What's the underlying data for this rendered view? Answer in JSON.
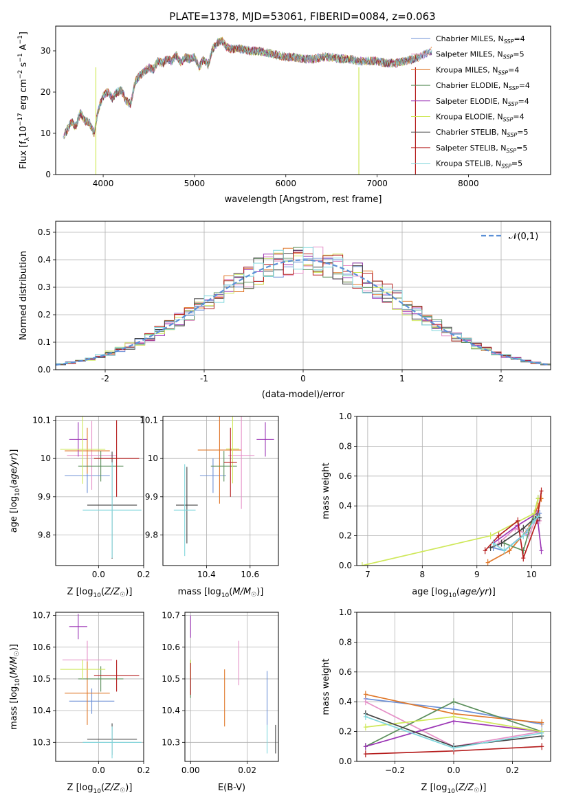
{
  "figure_title": "PLATE=1378, MJD=53061, FIBERID=0084, z=0.063",
  "models": [
    {
      "label": "Chabrier MILES",
      "nssp": "4",
      "color": "#6b8fd6"
    },
    {
      "label": "Salpeter MILES",
      "nssp": "5",
      "color": "#e58fc7"
    },
    {
      "label": "Kroupa MILES",
      "nssp": "4",
      "color": "#e0782a"
    },
    {
      "label": "Chabrier ELODIE",
      "nssp": "4",
      "color": "#5b8f5b"
    },
    {
      "label": "Salpeter ELODIE",
      "nssp": "4",
      "color": "#9b35b5"
    },
    {
      "label": "Kroupa ELODIE",
      "nssp": "4",
      "color": "#cfe85a"
    },
    {
      "label": "Chabrier STELIB",
      "nssp": "5",
      "color": "#444444"
    },
    {
      "label": "Salpeter STELIB",
      "nssp": "5",
      "color": "#b51c1c"
    },
    {
      "label": "Kroupa STELIB",
      "nssp": "5",
      "color": "#7fd6dc"
    }
  ],
  "chart_data": [
    {
      "id": "spectrum",
      "type": "line",
      "xlabel": "wavelength [Angstrom, rest frame]",
      "ylabel": "Flux [f_λ 10^-17 erg cm^-2 s^-1 A^-1]",
      "xlim": [
        3480,
        8900
      ],
      "ylim": [
        0,
        36
      ],
      "xticks": [
        4000,
        5000,
        6000,
        7000,
        8000
      ],
      "yticks": [
        0,
        10,
        20,
        30
      ],
      "series": [
        {
          "name": "spectrum",
          "x": [
            3560,
            3600,
            3650,
            3700,
            3750,
            3800,
            3850,
            3900,
            3950,
            4000,
            4050,
            4100,
            4150,
            4200,
            4250,
            4300,
            4350,
            4400,
            4450,
            4500,
            4550,
            4600,
            4650,
            4700,
            4750,
            4800,
            4850,
            4900,
            4950,
            5000,
            5050,
            5100,
            5150,
            5200,
            5250,
            5300,
            5350,
            5400,
            5500,
            5600,
            5700,
            5800,
            5900,
            6000,
            6100,
            6200,
            6300,
            6400,
            6500,
            6600,
            6700,
            6800,
            6900,
            7000,
            7100,
            7200,
            7300,
            7400,
            7500,
            7600
          ],
          "y": [
            9,
            10.5,
            13,
            11.5,
            15,
            13,
            12.5,
            10,
            16,
            19,
            20,
            18.5,
            20,
            20.5,
            18,
            17,
            22.5,
            24,
            25,
            26,
            25.5,
            27.5,
            27,
            28,
            27.5,
            29,
            27,
            28.5,
            28,
            28.5,
            26,
            28,
            26.5,
            30.5,
            32,
            32.5,
            31,
            30.5,
            30.5,
            30,
            30,
            29.5,
            29,
            28.5,
            28.5,
            28,
            28,
            28.5,
            28.5,
            28,
            28,
            27.5,
            27.5,
            27.5,
            27,
            27,
            27.5,
            28,
            29,
            30
          ]
        }
      ]
    },
    {
      "id": "residuals",
      "type": "histogram",
      "xlabel": "(data-model)/error",
      "ylabel": "Normed distribution",
      "xlim": [
        -2.5,
        2.5
      ],
      "ylim": [
        0,
        0.54
      ],
      "xticks": [
        -2,
        -1,
        0,
        1,
        2
      ],
      "yticks": [
        0.0,
        0.1,
        0.2,
        0.3,
        0.4,
        0.5
      ],
      "grid": true,
      "reference_curve": {
        "name": "𝒩(0,1)",
        "type": "normal",
        "mean": 0,
        "sigma": 1
      },
      "legend_loc": "top-right",
      "bin_edges_start": -2.5,
      "bin_width": 0.1
    },
    {
      "id": "age_vs_Z",
      "type": "errorbar",
      "xlabel": "Z [log10(Z/Z☉)]",
      "ylabel": "age [log10(age/yr)]",
      "xlim": [
        -0.19,
        0.2
      ],
      "ylim": [
        9.72,
        10.11
      ],
      "xticks": [
        0.0,
        0.2
      ],
      "xticklabels": [
        "0.0",
        "0.2"
      ],
      "yticks": [
        9.8,
        9.9,
        10.0,
        10.1
      ],
      "grid": true,
      "points": [
        {
          "model": 0,
          "x": -0.05,
          "xerr": 0.1,
          "y": 9.955,
          "yerr": 0.045
        },
        {
          "model": 1,
          "x": -0.03,
          "xerr": 0.11,
          "y": 10.008,
          "yerr": 0.09
        },
        {
          "model": 2,
          "x": -0.05,
          "xerr": 0.1,
          "y": 10.02,
          "yerr": 0.06
        },
        {
          "model": 3,
          "x": 0.01,
          "xerr": 0.1,
          "y": 9.98,
          "yerr": 0.04
        },
        {
          "model": 4,
          "x": -0.09,
          "xerr": 0.04,
          "y": 10.05,
          "yerr": 0.045
        },
        {
          "model": 5,
          "x": -0.07,
          "xerr": 0.1,
          "y": 10.024,
          "yerr": 0.09
        },
        {
          "model": 6,
          "x": 0.06,
          "xerr": 0.11,
          "y": 9.878,
          "yerr": 0.14
        },
        {
          "model": 7,
          "x": 0.08,
          "xerr": 0.1,
          "y": 10.0,
          "yerr": 0.1
        },
        {
          "model": 8,
          "x": 0.06,
          "xerr": 0.13,
          "y": 9.865,
          "yerr": 0.125
        }
      ]
    },
    {
      "id": "age_vs_mass",
      "type": "errorbar",
      "xlabel": "mass [log10(M/M☉)]",
      "ylabel": "",
      "xlim": [
        10.2,
        10.73
      ],
      "ylim": [
        9.72,
        10.11
      ],
      "xticks": [
        10.4,
        10.6
      ],
      "yticks": [
        9.8,
        9.9,
        10.0,
        10.1
      ],
      "grid": true,
      "points": [
        {
          "model": 0,
          "x": 10.43,
          "xerr": 0.06,
          "y": 9.955,
          "yerr": 0.045
        },
        {
          "model": 1,
          "x": 10.56,
          "xerr": 0.06,
          "y": 10.008,
          "yerr": 0.14
        },
        {
          "model": 2,
          "x": 10.46,
          "xerr": 0.1,
          "y": 10.022,
          "yerr": 0.14
        },
        {
          "model": 3,
          "x": 10.48,
          "xerr": 0.06,
          "y": 9.98,
          "yerr": 0.04
        },
        {
          "model": 4,
          "x": 10.67,
          "xerr": 0.04,
          "y": 10.05,
          "yerr": 0.045
        },
        {
          "model": 5,
          "x": 10.52,
          "xerr": 0.03,
          "y": 10.025,
          "yerr": 0.09
        },
        {
          "model": 6,
          "x": 10.31,
          "xerr": 0.05,
          "y": 9.878,
          "yerr": 0.1
        },
        {
          "model": 7,
          "x": 10.51,
          "xerr": 0.03,
          "y": 9.99,
          "yerr": 0.09
        },
        {
          "model": 8,
          "x": 10.3,
          "xerr": 0.05,
          "y": 9.865,
          "yerr": 0.12
        }
      ]
    },
    {
      "id": "weight_vs_age",
      "type": "line",
      "xlabel": "age [log10(age/yr)]",
      "ylabel": "mass weight",
      "xlim": [
        6.8,
        10.35
      ],
      "ylim": [
        0,
        1.0
      ],
      "xticks": [
        7,
        8,
        9,
        10
      ],
      "yticks": [
        0.0,
        0.2,
        0.4,
        0.6,
        0.8,
        1.0
      ],
      "grid": true,
      "series": [
        {
          "model": 0,
          "x": [
            9.3,
            9.5,
            9.9,
            10.1,
            10.15
          ],
          "y": [
            0.12,
            0.1,
            0.22,
            0.33,
            0.35
          ]
        },
        {
          "model": 1,
          "x": [
            9.4,
            9.7,
            9.95,
            10.1,
            10.15
          ],
          "y": [
            0.15,
            0.25,
            0.2,
            0.33,
            0.3
          ]
        },
        {
          "model": 2,
          "x": [
            9.2,
            9.6,
            9.95,
            10.12,
            10.18
          ],
          "y": [
            0.02,
            0.1,
            0.25,
            0.4,
            0.45
          ]
        },
        {
          "model": 3,
          "x": [
            9.5,
            9.85,
            10.05,
            10.12
          ],
          "y": [
            0.15,
            0.1,
            0.35,
            0.45
          ]
        },
        {
          "model": 4,
          "x": [
            9.3,
            9.75,
            10.1,
            10.18
          ],
          "y": [
            0.15,
            0.27,
            0.35,
            0.1
          ]
        },
        {
          "model": 5,
          "x": [
            6.9,
            9.25,
            10.05,
            10.12
          ],
          "y": [
            0.0,
            0.2,
            0.35,
            0.45
          ]
        },
        {
          "model": 6,
          "x": [
            9.25,
            9.45,
            9.85,
            10.1,
            10.15
          ],
          "y": [
            0.12,
            0.15,
            0.25,
            0.33,
            0.32
          ]
        },
        {
          "model": 7,
          "x": [
            9.15,
            9.4,
            9.75,
            9.85,
            10.1,
            10.18
          ],
          "y": [
            0.1,
            0.2,
            0.3,
            0.05,
            0.3,
            0.5
          ]
        },
        {
          "model": 8,
          "x": [
            9.3,
            9.5,
            9.85,
            10.05,
            10.12
          ],
          "y": [
            0.15,
            0.1,
            0.2,
            0.3,
            0.33
          ]
        }
      ]
    },
    {
      "id": "mass_vs_Z",
      "type": "errorbar",
      "xlabel": "Z [log10(Z/Z☉)]",
      "ylabel": "mass [log10(M/M☉)]",
      "xlim": [
        -0.19,
        0.2
      ],
      "ylim": [
        10.24,
        10.71
      ],
      "xticks": [
        0.0,
        0.2
      ],
      "xticklabels": [
        "0.0",
        "0.2"
      ],
      "yticks": [
        10.3,
        10.4,
        10.5,
        10.6,
        10.7
      ],
      "grid": true,
      "points": [
        {
          "model": 0,
          "x": -0.03,
          "xerr": 0.1,
          "y": 10.43,
          "yerr": 0.04
        },
        {
          "model": 1,
          "x": -0.05,
          "xerr": 0.11,
          "y": 10.56,
          "yerr": 0.06
        },
        {
          "model": 2,
          "x": -0.05,
          "xerr": 0.1,
          "y": 10.455,
          "yerr": 0.1
        },
        {
          "model": 3,
          "x": 0.01,
          "xerr": 0.1,
          "y": 10.5,
          "yerr": 0.04
        },
        {
          "model": 4,
          "x": -0.09,
          "xerr": 0.04,
          "y": 10.665,
          "yerr": 0.04
        },
        {
          "model": 5,
          "x": -0.07,
          "xerr": 0.1,
          "y": 10.53,
          "yerr": 0.03
        },
        {
          "model": 6,
          "x": 0.06,
          "xerr": 0.11,
          "y": 10.31,
          "yerr": 0.05
        },
        {
          "model": 7,
          "x": 0.08,
          "xerr": 0.1,
          "y": 10.51,
          "yerr": 0.05
        },
        {
          "model": 8,
          "x": 0.06,
          "xerr": 0.13,
          "y": 10.3,
          "yerr": 0.05
        }
      ]
    },
    {
      "id": "mass_vs_ebv",
      "type": "errorbar",
      "xlabel": "E(B-V)",
      "ylabel": "",
      "xlim": [
        -0.002,
        0.031
      ],
      "ylim": [
        10.24,
        10.71
      ],
      "xticks": [
        0.0,
        0.02
      ],
      "xticklabels": [
        "0.00",
        "0.02"
      ],
      "yticks": [
        10.3,
        10.4,
        10.5,
        10.6,
        10.7
      ],
      "grid": true,
      "points": [
        {
          "model": 0,
          "x": 0.027,
          "xerr": 0.0,
          "y": 10.44,
          "yerr": 0.085
        },
        {
          "model": 1,
          "x": 0.017,
          "xerr": 0.0,
          "y": 10.55,
          "yerr": 0.07
        },
        {
          "model": 2,
          "x": 0.012,
          "xerr": 0.0,
          "y": 10.44,
          "yerr": 0.09
        },
        {
          "model": 3,
          "x": 0.0,
          "xerr": 0.0,
          "y": 10.5,
          "yerr": 0.06
        },
        {
          "model": 4,
          "x": 0.0,
          "xerr": 0.0,
          "y": 10.665,
          "yerr": 0.035
        },
        {
          "model": 5,
          "x": 0.0,
          "xerr": 0.0,
          "y": 10.53,
          "yerr": 0.03
        },
        {
          "model": 6,
          "x": 0.03,
          "xerr": 0.0,
          "y": 10.31,
          "yerr": 0.045
        },
        {
          "model": 7,
          "x": 0.0,
          "xerr": 0.0,
          "y": 10.5,
          "yerr": 0.05
        },
        {
          "model": 8,
          "x": 0.027,
          "xerr": 0.0,
          "y": 10.31,
          "yerr": 0.045
        }
      ]
    },
    {
      "id": "weight_vs_Z",
      "type": "line",
      "xlabel": "Z [log10(Z/Z☉)]",
      "ylabel": "mass weight",
      "xlim": [
        -0.33,
        0.33
      ],
      "ylim": [
        0,
        1.0
      ],
      "xticks": [
        -0.2,
        0.0,
        0.2
      ],
      "xticklabels": [
        "−0.2",
        "0.0",
        "0.2"
      ],
      "yticks": [
        0.0,
        0.2,
        0.4,
        0.6,
        0.8,
        1.0
      ],
      "grid": true,
      "series": [
        {
          "model": 0,
          "x": [
            -0.3,
            0.0,
            0.3
          ],
          "y": [
            0.42,
            0.35,
            0.25
          ]
        },
        {
          "model": 1,
          "x": [
            -0.3,
            0.0,
            0.3
          ],
          "y": [
            0.4,
            0.1,
            0.2
          ]
        },
        {
          "model": 2,
          "x": [
            -0.3,
            0.0,
            0.3
          ],
          "y": [
            0.45,
            0.32,
            0.26
          ]
        },
        {
          "model": 3,
          "x": [
            -0.3,
            0.0,
            0.3
          ],
          "y": [
            0.1,
            0.4,
            0.2
          ]
        },
        {
          "model": 4,
          "x": [
            -0.3,
            0.0,
            0.3
          ],
          "y": [
            0.1,
            0.27,
            0.2
          ]
        },
        {
          "model": 5,
          "x": [
            -0.3,
            0.0,
            0.3
          ],
          "y": [
            0.23,
            0.3,
            0.2
          ]
        },
        {
          "model": 6,
          "x": [
            -0.3,
            0.0,
            0.3
          ],
          "y": [
            0.32,
            0.1,
            0.17
          ]
        },
        {
          "model": 7,
          "x": [
            -0.3,
            0.0,
            0.3
          ],
          "y": [
            0.05,
            0.07,
            0.1
          ]
        },
        {
          "model": 8,
          "x": [
            -0.3,
            0.0,
            0.3
          ],
          "y": [
            0.3,
            0.09,
            0.19
          ]
        }
      ]
    }
  ]
}
